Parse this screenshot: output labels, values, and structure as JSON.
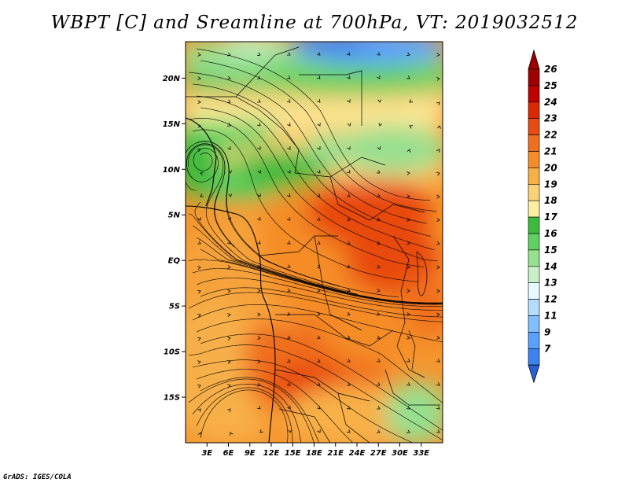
{
  "title": "WBPT [C] and Sreamline at 700hPa, VT: 2019032512",
  "footer": "GrADS: IGES/COLA",
  "map": {
    "lon_range": [
      0,
      36
    ],
    "lat_range": [
      -20,
      24
    ],
    "x_ticks": [
      {
        "lon": 3,
        "label": "3E"
      },
      {
        "lon": 6,
        "label": "6E"
      },
      {
        "lon": 9,
        "label": "9E"
      },
      {
        "lon": 12,
        "label": "12E"
      },
      {
        "lon": 15,
        "label": "15E"
      },
      {
        "lon": 18,
        "label": "18E"
      },
      {
        "lon": 21,
        "label": "21E"
      },
      {
        "lon": 24,
        "label": "24E"
      },
      {
        "lon": 27,
        "label": "27E"
      },
      {
        "lon": 30,
        "label": "30E"
      },
      {
        "lon": 33,
        "label": "33E"
      }
    ],
    "y_ticks": [
      {
        "lat": 20,
        "label": "20N"
      },
      {
        "lat": 15,
        "label": "15N"
      },
      {
        "lat": 10,
        "label": "10N"
      },
      {
        "lat": 5,
        "label": "5N"
      },
      {
        "lat": 0,
        "label": "EQ"
      },
      {
        "lat": -5,
        "label": "5S"
      },
      {
        "lat": -10,
        "label": "10S"
      },
      {
        "lat": -15,
        "label": "15S"
      }
    ]
  },
  "colorbar": {
    "levels": [
      {
        "label": "26",
        "color": "#a00000"
      },
      {
        "label": "25",
        "color": "#c00000"
      },
      {
        "label": "24",
        "color": "#dc2800"
      },
      {
        "label": "23",
        "color": "#e84a10"
      },
      {
        "label": "22",
        "color": "#f06e1e"
      },
      {
        "label": "21",
        "color": "#f58c28"
      },
      {
        "label": "20",
        "color": "#f8b046"
      },
      {
        "label": "19",
        "color": "#fcd278"
      },
      {
        "label": "18",
        "color": "#fcf0a0"
      },
      {
        "label": "17",
        "color": "#3cbb3c"
      },
      {
        "label": "16",
        "color": "#60d060"
      },
      {
        "label": "15",
        "color": "#96e090"
      },
      {
        "label": "14",
        "color": "#c8f0c8"
      },
      {
        "label": "13",
        "color": "#e6faff"
      },
      {
        "label": "12",
        "color": "#b4dcff"
      },
      {
        "label": "11",
        "color": "#82bdff"
      },
      {
        "label": "9",
        "color": "#5aa0ff"
      },
      {
        "label": "7",
        "color": "#3c82f0"
      }
    ],
    "min_color": "#2860dc",
    "max_color": "#a00000"
  }
}
